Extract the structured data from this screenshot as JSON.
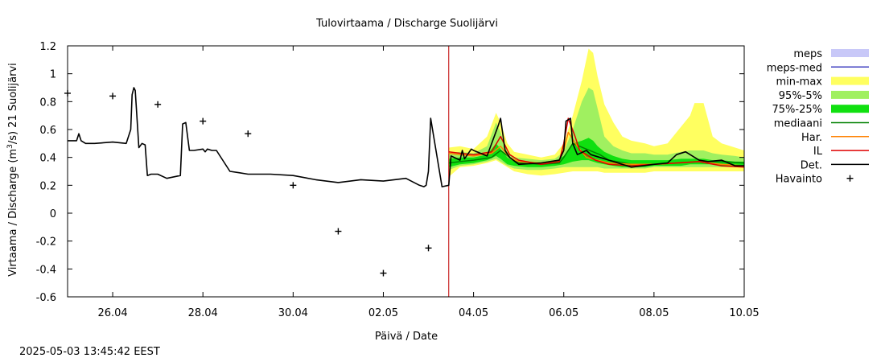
{
  "chart_data": {
    "type": "line",
    "title": "Tulovirtaama / Discharge  Suolijärvi",
    "xlabel": "Päivä / Date",
    "ylabel_parts": [
      "Virtaama / Discharge (m",
      "3",
      "/s)  21  Suolijärvi"
    ],
    "ylim": [
      -0.6,
      1.2
    ],
    "yticks": [
      -0.6,
      -0.4,
      -0.2,
      0,
      0.2,
      0.4,
      0.6,
      0.8,
      1,
      1.2
    ],
    "ytick_labels": [
      "-0.6",
      "-0.4",
      "-0.2",
      "0",
      "0.2",
      "0.4",
      "0.6",
      "0.8",
      "1",
      "1.2"
    ],
    "xlim": [
      0,
      15
    ],
    "xticks": [
      1,
      3,
      5,
      7,
      9,
      11,
      13,
      15
    ],
    "xtick_labels": [
      "26.04",
      "28.04",
      "30.04",
      "02.05",
      "04.05",
      "06.05",
      "08.05",
      "10.05"
    ],
    "forecast_start": 8.45,
    "grid": false,
    "legend": {
      "position": "right",
      "entries": [
        {
          "label": "meps",
          "kind": "box",
          "color": "#c8c8f8"
        },
        {
          "label": "meps-med",
          "kind": "line",
          "color": "#4040c0"
        },
        {
          "label": "min-max",
          "kind": "box",
          "color": "#ffff60"
        },
        {
          "label": "95%-5%",
          "kind": "box",
          "color": "#a0f060"
        },
        {
          "label": "75%-25%",
          "kind": "box",
          "color": "#10e010"
        },
        {
          "label": "mediaani",
          "kind": "line",
          "color": "#008000"
        },
        {
          "label": "Har.",
          "kind": "line",
          "color": "#ff8000"
        },
        {
          "label": "IL",
          "kind": "line",
          "color": "#e00000"
        },
        {
          "label": "Det.",
          "kind": "line",
          "color": "#000000"
        },
        {
          "label": "Havainto",
          "kind": "marker",
          "color": "#000000"
        }
      ]
    },
    "observations": {
      "x": [
        0,
        1,
        2,
        3,
        4,
        5,
        6,
        7,
        8
      ],
      "y": [
        0.86,
        0.84,
        0.78,
        0.66,
        0.57,
        0.2,
        -0.13,
        -0.43,
        -0.25
      ]
    },
    "series": [
      {
        "name": "Det.",
        "color": "#000000",
        "x": [
          0,
          0.2,
          0.25,
          0.3,
          0.4,
          0.6,
          1.0,
          1.3,
          1.4,
          1.43,
          1.47,
          1.5,
          1.58,
          1.65,
          1.72,
          1.77,
          1.85,
          2.0,
          2.2,
          2.5,
          2.55,
          2.62,
          2.7,
          2.8,
          3.0,
          3.05,
          3.1,
          3.2,
          3.3,
          3.6,
          3.8,
          4.0,
          4.5,
          5.0,
          5.5,
          6.0,
          6.5,
          7.0,
          7.5,
          7.8,
          7.9,
          7.95,
          8.0,
          8.05,
          8.3,
          8.45,
          8.5,
          8.7,
          8.75,
          8.8,
          8.95,
          9.0,
          9.3,
          9.55,
          9.6,
          9.7,
          9.8,
          10.0,
          10.5,
          10.9,
          11.0,
          11.05,
          11.15,
          11.2,
          11.3,
          11.5,
          11.6,
          11.8,
          12.0,
          12.2,
          12.5,
          13.0,
          13.3,
          13.5,
          13.7,
          14.0,
          14.2,
          14.5,
          14.8,
          15.0
        ],
        "y": [
          0.52,
          0.52,
          0.57,
          0.52,
          0.5,
          0.5,
          0.51,
          0.5,
          0.6,
          0.85,
          0.9,
          0.88,
          0.47,
          0.5,
          0.49,
          0.27,
          0.28,
          0.28,
          0.25,
          0.27,
          0.64,
          0.65,
          0.45,
          0.45,
          0.46,
          0.44,
          0.46,
          0.45,
          0.45,
          0.3,
          0.29,
          0.28,
          0.28,
          0.27,
          0.24,
          0.22,
          0.24,
          0.23,
          0.25,
          0.2,
          0.19,
          0.2,
          0.3,
          0.68,
          0.19,
          0.2,
          0.41,
          0.38,
          0.45,
          0.39,
          0.46,
          0.45,
          0.41,
          0.63,
          0.68,
          0.45,
          0.4,
          0.35,
          0.36,
          0.38,
          0.45,
          0.66,
          0.68,
          0.5,
          0.42,
          0.45,
          0.42,
          0.4,
          0.38,
          0.36,
          0.33,
          0.35,
          0.36,
          0.42,
          0.44,
          0.38,
          0.37,
          0.38,
          0.34,
          0.34
        ]
      },
      {
        "name": "IL",
        "color": "#e00000",
        "x": [
          8.45,
          8.7,
          9.0,
          9.4,
          9.6,
          9.8,
          10.0,
          10.5,
          10.9,
          11.0,
          11.1,
          11.25,
          11.35,
          11.5,
          11.7,
          12.0,
          12.5,
          13.0,
          13.5,
          14.0,
          14.5,
          15.0
        ],
        "y": [
          0.44,
          0.43,
          0.42,
          0.44,
          0.55,
          0.42,
          0.38,
          0.35,
          0.37,
          0.5,
          0.68,
          0.55,
          0.45,
          0.42,
          0.38,
          0.35,
          0.34,
          0.35,
          0.36,
          0.37,
          0.34,
          0.33
        ]
      },
      {
        "name": "Har.",
        "color": "#ff8000",
        "x": [
          8.45,
          8.7,
          9.0,
          9.4,
          9.6,
          9.8,
          10.0,
          10.5,
          10.9,
          11.0,
          11.1,
          11.3,
          11.5,
          12.0,
          12.5,
          13.0,
          13.5,
          14.0,
          14.5,
          15.0
        ],
        "y": [
          0.43,
          0.42,
          0.41,
          0.43,
          0.48,
          0.4,
          0.37,
          0.36,
          0.38,
          0.45,
          0.58,
          0.48,
          0.4,
          0.36,
          0.35,
          0.35,
          0.36,
          0.37,
          0.35,
          0.34
        ]
      },
      {
        "name": "mediaani",
        "color": "#008000",
        "x": [
          8.45,
          8.7,
          9.0,
          9.4,
          9.6,
          9.8,
          10.0,
          10.5,
          10.9,
          11.0,
          11.2,
          11.5,
          11.8,
          12.0,
          12.5,
          13.0,
          13.5,
          14.0,
          14.5,
          15.0
        ],
        "y": [
          0.36,
          0.37,
          0.38,
          0.4,
          0.45,
          0.4,
          0.36,
          0.35,
          0.36,
          0.4,
          0.5,
          0.46,
          0.42,
          0.38,
          0.35,
          0.35,
          0.36,
          0.37,
          0.37,
          0.36
        ]
      }
    ],
    "bands": {
      "x": [
        8.45,
        8.7,
        9.0,
        9.3,
        9.5,
        9.6,
        9.75,
        9.9,
        10.2,
        10.5,
        10.8,
        11.0,
        11.2,
        11.4,
        11.55,
        11.65,
        11.75,
        11.9,
        12.1,
        12.3,
        12.5,
        12.8,
        13.0,
        13.3,
        13.6,
        13.8,
        13.9,
        14.1,
        14.3,
        14.5,
        14.8,
        15.0
      ],
      "min_max": {
        "color": "#ffff60",
        "lo": [
          0.26,
          0.33,
          0.34,
          0.36,
          0.38,
          0.36,
          0.33,
          0.3,
          0.28,
          0.27,
          0.28,
          0.29,
          0.3,
          0.3,
          0.3,
          0.3,
          0.3,
          0.29,
          0.29,
          0.29,
          0.29,
          0.29,
          0.3,
          0.3,
          0.3,
          0.3,
          0.3,
          0.3,
          0.3,
          0.3,
          0.3,
          0.3
        ],
        "hi": [
          0.47,
          0.48,
          0.46,
          0.55,
          0.72,
          0.65,
          0.5,
          0.44,
          0.42,
          0.4,
          0.42,
          0.5,
          0.7,
          0.95,
          1.18,
          1.15,
          0.98,
          0.78,
          0.65,
          0.55,
          0.52,
          0.5,
          0.48,
          0.5,
          0.62,
          0.7,
          0.79,
          0.79,
          0.55,
          0.5,
          0.47,
          0.45
        ]
      },
      "p95_5": {
        "color": "#a0f060",
        "lo": [
          0.31,
          0.34,
          0.35,
          0.37,
          0.39,
          0.37,
          0.34,
          0.32,
          0.31,
          0.31,
          0.32,
          0.33,
          0.33,
          0.33,
          0.33,
          0.33,
          0.33,
          0.32,
          0.32,
          0.32,
          0.32,
          0.32,
          0.33,
          0.33,
          0.33,
          0.33,
          0.33,
          0.33,
          0.33,
          0.33,
          0.33,
          0.33
        ],
        "hi": [
          0.43,
          0.44,
          0.43,
          0.48,
          0.65,
          0.58,
          0.44,
          0.4,
          0.39,
          0.38,
          0.39,
          0.44,
          0.6,
          0.8,
          0.9,
          0.88,
          0.75,
          0.55,
          0.48,
          0.45,
          0.43,
          0.43,
          0.42,
          0.42,
          0.44,
          0.45,
          0.45,
          0.45,
          0.43,
          0.42,
          0.41,
          0.4
        ]
      },
      "p75_25": {
        "color": "#10e010",
        "lo": [
          0.33,
          0.35,
          0.36,
          0.38,
          0.41,
          0.39,
          0.35,
          0.34,
          0.33,
          0.33,
          0.34,
          0.35,
          0.37,
          0.38,
          0.38,
          0.37,
          0.36,
          0.35,
          0.34,
          0.33,
          0.33,
          0.33,
          0.34,
          0.34,
          0.34,
          0.35,
          0.35,
          0.35,
          0.35,
          0.34,
          0.34,
          0.34
        ],
        "hi": [
          0.39,
          0.4,
          0.4,
          0.42,
          0.5,
          0.46,
          0.4,
          0.37,
          0.36,
          0.36,
          0.37,
          0.41,
          0.5,
          0.52,
          0.54,
          0.52,
          0.48,
          0.44,
          0.41,
          0.39,
          0.38,
          0.38,
          0.38,
          0.38,
          0.39,
          0.39,
          0.39,
          0.39,
          0.38,
          0.38,
          0.37,
          0.37
        ]
      }
    }
  },
  "timestamp": "2025-05-03 13:45:42 EEST"
}
